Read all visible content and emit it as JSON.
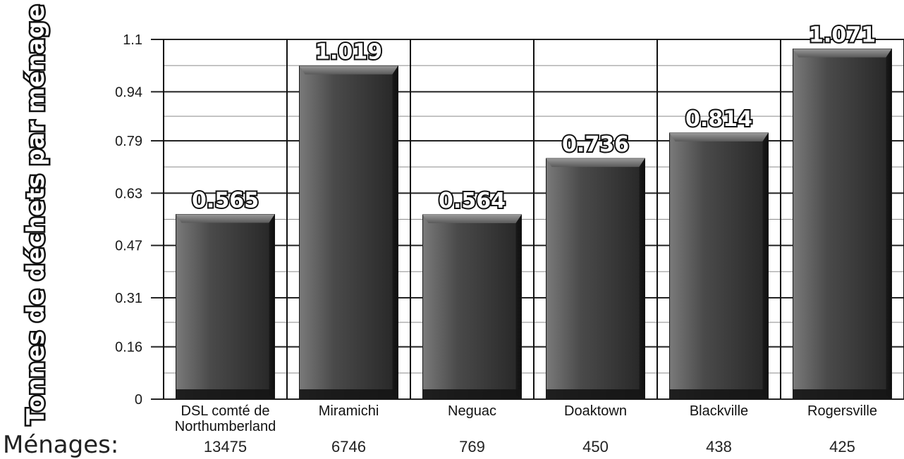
{
  "chart_data": {
    "type": "bar",
    "title": "",
    "xlabel": "",
    "ylabel": "Tonnes de déchets par ménage",
    "ylim": [
      0,
      1.1
    ],
    "yticks": [
      "1.1",
      "0.94",
      "0.79",
      "0.63",
      "0.47",
      "0.31",
      "0.16",
      "0"
    ],
    "ytick_values": [
      1.1,
      0.94,
      0.79,
      0.63,
      0.47,
      0.31,
      0.16,
      0
    ],
    "grid": true,
    "categories": [
      "DSL comté de Northumberland",
      "Miramichi",
      "Neguac",
      "Doaktown",
      "Blackville",
      "Rogersville"
    ],
    "category_lines": [
      [
        "DSL comté de",
        "Northumberland"
      ],
      [
        "Miramichi"
      ],
      [
        "Neguac"
      ],
      [
        "Doaktown"
      ],
      [
        "Blackville"
      ],
      [
        "Rogersville"
      ]
    ],
    "values": [
      0.565,
      1.019,
      0.564,
      0.736,
      0.814,
      1.071
    ],
    "value_labels": [
      "0.565",
      "1.019",
      "0.564",
      "0.736",
      "0.814",
      "1.071"
    ],
    "bar_color": "#3a3a3a"
  },
  "footer": {
    "title": "Ménages:",
    "counts": [
      "13475",
      "6746",
      "769",
      "450",
      "438",
      "425"
    ]
  }
}
